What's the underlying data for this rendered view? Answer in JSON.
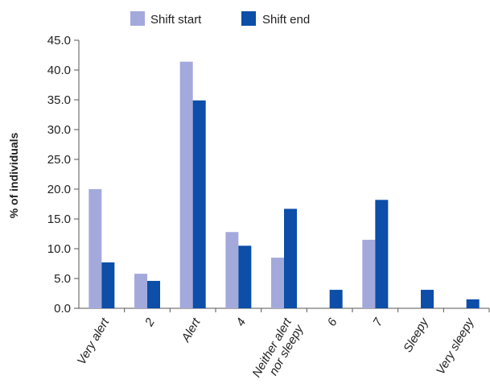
{
  "chart_data": {
    "type": "bar",
    "title": "",
    "xlabel": "",
    "ylabel": "% of individuals",
    "ylim": [
      0,
      45
    ],
    "ytick_step": 5,
    "ytick_labels": [
      "0.0",
      "5.0",
      "10.0",
      "15.0",
      "20.0",
      "25.0",
      "30.0",
      "35.0",
      "40.0",
      "45.0"
    ],
    "grid": false,
    "legend_position": "top",
    "categories": [
      "Very alert",
      "2",
      "Alert",
      "4",
      "Neither alert nor sleepy",
      "6",
      "7",
      "Sleepy",
      "Very sleepy"
    ],
    "category_lines": [
      [
        "Very alert"
      ],
      [
        "2"
      ],
      [
        "Alert"
      ],
      [
        "4"
      ],
      [
        "Neither alert",
        "nor sleepy"
      ],
      [
        "6"
      ],
      [
        "7"
      ],
      [
        "Sleepy"
      ],
      [
        "Very sleepy"
      ]
    ],
    "series": [
      {
        "name": "Shift start",
        "color": "#a4a9dc",
        "values": [
          20.0,
          5.8,
          41.4,
          12.8,
          8.5,
          0,
          11.5,
          0,
          0
        ]
      },
      {
        "name": "Shift end",
        "color": "#0c4ea8",
        "values": [
          7.7,
          4.6,
          34.9,
          10.5,
          16.7,
          3.1,
          18.2,
          3.1,
          1.5
        ]
      }
    ]
  }
}
